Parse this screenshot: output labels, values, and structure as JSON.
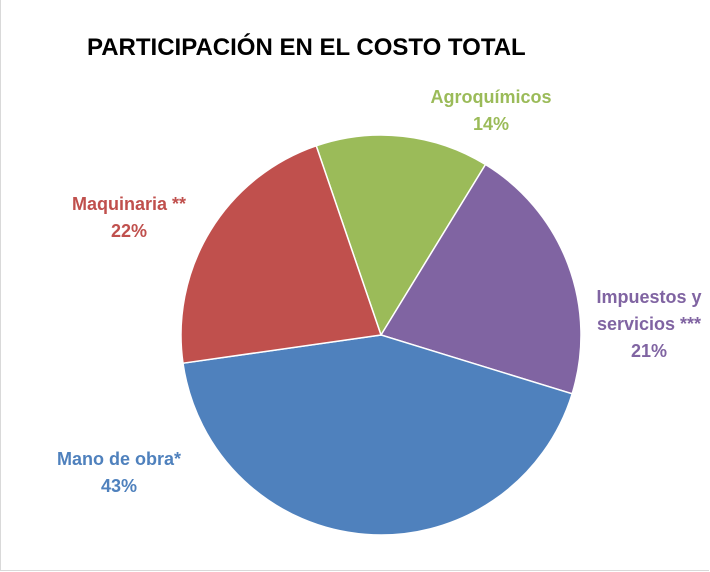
{
  "chart_data": {
    "type": "pie",
    "title": "PARTICIPACIÓN EN EL COSTO TOTAL",
    "categories": [
      "Agroquímicos",
      "Impuestos y servicios ***",
      "Mano de obra*",
      "Maquinaria **"
    ],
    "values": [
      14,
      21,
      43,
      22
    ],
    "value_labels": [
      "14%",
      "21%",
      "43%",
      "22%"
    ],
    "colors": [
      "#9bbb59",
      "#8064a2",
      "#4f81bd",
      "#c0504d"
    ]
  }
}
